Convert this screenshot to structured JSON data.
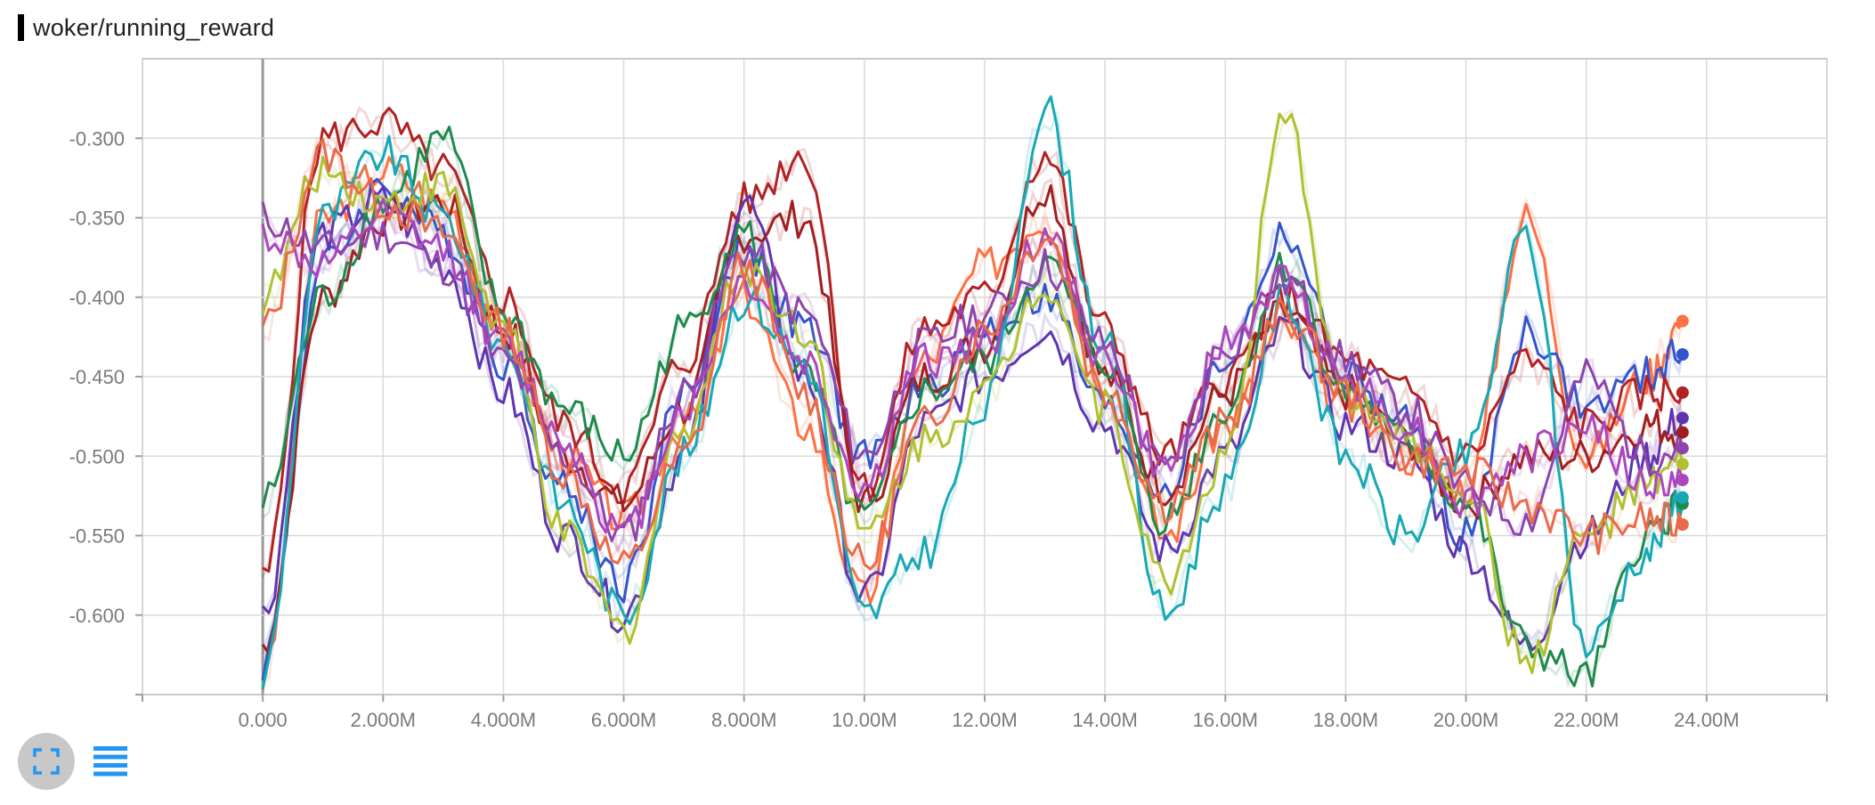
{
  "card": {
    "title": "woker/running_reward"
  },
  "toolbar": {
    "expand_icon": "fullscreen-icon",
    "legend_icon": "list-icon",
    "accent_color": "#2196F3",
    "button_bg": "#c8c8c8"
  },
  "chart_data": {
    "type": "line",
    "title": "woker/running_reward",
    "xlabel": "",
    "ylabel": "",
    "xlim": [
      -2000000,
      26000000
    ],
    "ylim": [
      -0.65,
      -0.25
    ],
    "x_ticks": [
      0,
      2000000,
      4000000,
      6000000,
      8000000,
      10000000,
      12000000,
      14000000,
      16000000,
      18000000,
      20000000,
      22000000,
      24000000
    ],
    "x_tick_labels": [
      "0.000",
      "2.000M",
      "4.000M",
      "6.000M",
      "8.000M",
      "10.00M",
      "12.00M",
      "14.00M",
      "16.00M",
      "18.00M",
      "20.00M",
      "22.00M",
      "24.00M"
    ],
    "y_ticks": [
      -0.3,
      -0.35,
      -0.4,
      -0.45,
      -0.5,
      -0.55,
      -0.6
    ],
    "y_tick_labels": [
      "-0.300",
      "-0.350",
      "-0.400",
      "-0.450",
      "-0.500",
      "-0.550",
      "-0.600"
    ],
    "grid": true,
    "legend": "none",
    "x": [
      0,
      1000000,
      2000000,
      3000000,
      4000000,
      5000000,
      6000000,
      7000000,
      8000000,
      9000000,
      10000000,
      11000000,
      12000000,
      13000000,
      14000000,
      15000000,
      16000000,
      17000000,
      18000000,
      19000000,
      20000000,
      21000000,
      22000000,
      23000000,
      23600000
    ],
    "series": [
      {
        "color": "#ff7043",
        "values": [
          -0.64,
          -0.35,
          -0.32,
          -0.34,
          -0.42,
          -0.5,
          -0.54,
          -0.48,
          -0.4,
          -0.48,
          -0.59,
          -0.44,
          -0.38,
          -0.35,
          -0.45,
          -0.55,
          -0.48,
          -0.42,
          -0.47,
          -0.5,
          -0.52,
          -0.35,
          -0.5,
          -0.45,
          -0.415
        ]
      },
      {
        "color": "#3355cc",
        "values": [
          -0.63,
          -0.38,
          -0.33,
          -0.36,
          -0.44,
          -0.52,
          -0.58,
          -0.46,
          -0.37,
          -0.42,
          -0.5,
          -0.46,
          -0.42,
          -0.4,
          -0.47,
          -0.52,
          -0.44,
          -0.36,
          -0.45,
          -0.48,
          -0.55,
          -0.42,
          -0.47,
          -0.45,
          -0.436
        ]
      },
      {
        "color": "#b22222",
        "values": [
          -0.58,
          -0.3,
          -0.29,
          -0.32,
          -0.4,
          -0.48,
          -0.52,
          -0.44,
          -0.34,
          -0.31,
          -0.52,
          -0.42,
          -0.4,
          -0.31,
          -0.42,
          -0.5,
          -0.45,
          -0.4,
          -0.44,
          -0.46,
          -0.5,
          -0.44,
          -0.48,
          -0.46,
          -0.46
        ]
      },
      {
        "color": "#5e35b1",
        "values": [
          -0.6,
          -0.36,
          -0.34,
          -0.38,
          -0.46,
          -0.55,
          -0.6,
          -0.5,
          -0.34,
          -0.45,
          -0.59,
          -0.48,
          -0.45,
          -0.42,
          -0.48,
          -0.56,
          -0.5,
          -0.42,
          -0.48,
          -0.5,
          -0.56,
          -0.62,
          -0.55,
          -0.5,
          -0.476
        ]
      },
      {
        "color": "#a11e1e",
        "values": [
          -0.62,
          -0.4,
          -0.35,
          -0.34,
          -0.42,
          -0.5,
          -0.53,
          -0.47,
          -0.36,
          -0.35,
          -0.53,
          -0.45,
          -0.43,
          -0.33,
          -0.45,
          -0.52,
          -0.46,
          -0.41,
          -0.46,
          -0.49,
          -0.53,
          -0.5,
          -0.5,
          -0.48,
          -0.485
        ]
      },
      {
        "color": "#1e8a4c",
        "values": [
          -0.53,
          -0.4,
          -0.34,
          -0.3,
          -0.41,
          -0.47,
          -0.5,
          -0.42,
          -0.36,
          -0.45,
          -0.54,
          -0.46,
          -0.44,
          -0.38,
          -0.44,
          -0.54,
          -0.47,
          -0.38,
          -0.46,
          -0.49,
          -0.53,
          -0.62,
          -0.64,
          -0.55,
          -0.53
        ]
      },
      {
        "color": "#17a8b5",
        "values": [
          -0.64,
          -0.35,
          -0.31,
          -0.35,
          -0.43,
          -0.53,
          -0.6,
          -0.5,
          -0.4,
          -0.44,
          -0.6,
          -0.56,
          -0.47,
          -0.28,
          -0.43,
          -0.6,
          -0.52,
          -0.4,
          -0.5,
          -0.55,
          -0.5,
          -0.36,
          -0.62,
          -0.56,
          -0.526
        ]
      },
      {
        "color": "#b0c030",
        "values": [
          -0.4,
          -0.32,
          -0.34,
          -0.33,
          -0.42,
          -0.55,
          -0.61,
          -0.48,
          -0.38,
          -0.42,
          -0.55,
          -0.49,
          -0.46,
          -0.39,
          -0.47,
          -0.58,
          -0.5,
          -0.29,
          -0.46,
          -0.49,
          -0.52,
          -0.63,
          -0.55,
          -0.52,
          -0.505
        ]
      },
      {
        "color": "#8e44ad",
        "values": [
          -0.35,
          -0.37,
          -0.36,
          -0.38,
          -0.44,
          -0.5,
          -0.55,
          -0.46,
          -0.37,
          -0.41,
          -0.5,
          -0.43,
          -0.41,
          -0.38,
          -0.43,
          -0.51,
          -0.43,
          -0.39,
          -0.44,
          -0.47,
          -0.52,
          -0.54,
          -0.45,
          -0.5,
          -0.495
        ]
      },
      {
        "color": "#ab47bc",
        "values": [
          -0.36,
          -0.38,
          -0.35,
          -0.37,
          -0.43,
          -0.49,
          -0.55,
          -0.47,
          -0.39,
          -0.44,
          -0.52,
          -0.44,
          -0.43,
          -0.36,
          -0.44,
          -0.51,
          -0.43,
          -0.39,
          -0.45,
          -0.48,
          -0.53,
          -0.5,
          -0.48,
          -0.52,
          -0.515
        ]
      },
      {
        "color": "#e86a4a",
        "values": [
          -0.42,
          -0.31,
          -0.34,
          -0.36,
          -0.42,
          -0.51,
          -0.57,
          -0.5,
          -0.38,
          -0.46,
          -0.57,
          -0.48,
          -0.42,
          -0.36,
          -0.46,
          -0.53,
          -0.48,
          -0.41,
          -0.46,
          -0.5,
          -0.51,
          -0.53,
          -0.55,
          -0.54,
          -0.543
        ]
      }
    ]
  }
}
